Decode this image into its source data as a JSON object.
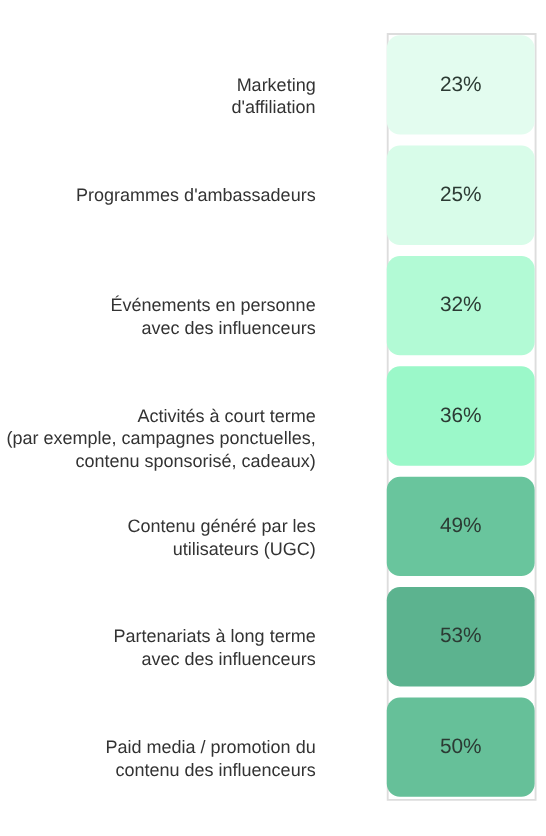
{
  "chart_data": {
    "type": "heatmap",
    "categories": [
      null
    ],
    "y_categories": [
      "Marketing\nd'affiliation",
      "Programmes d'ambassadeurs",
      "Événements en personne\navec des influenceurs",
      "Activités à court terme\n(par exemple, campagnes ponctuelles,\ncontenu sponsorisé, cadeaux)",
      "Contenu généré par les\nutilisateurs (UGC)",
      "Partenariats à long terme\navec des influenceurs",
      "Paid media / promotion du\ncontenu des influenceurs"
    ],
    "cells": [
      [
        23
      ],
      [
        25
      ],
      [
        32
      ],
      [
        36
      ],
      [
        49
      ],
      [
        53
      ],
      [
        50
      ]
    ],
    "cell_labels": [
      [
        "23%"
      ],
      [
        "25%"
      ],
      [
        "32%"
      ],
      [
        "36%"
      ],
      [
        "49%"
      ],
      [
        "53%"
      ],
      [
        "50%"
      ]
    ],
    "tick_labels": "y"
  }
}
